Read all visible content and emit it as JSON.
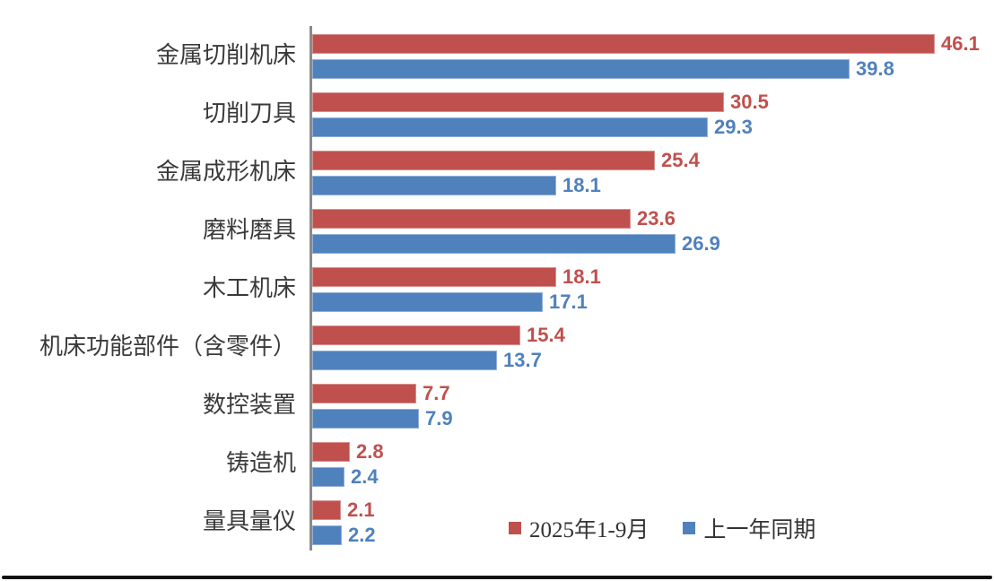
{
  "chart_data": {
    "type": "bar",
    "orientation": "horizontal",
    "title": "",
    "xlabel": "",
    "ylabel": "",
    "categories": [
      "金属切削机床",
      "切削刀具",
      "金属成形机床",
      "磨料磨具",
      "木工机床",
      "机床功能部件（含零件）",
      "数控装置",
      "铸造机",
      "量具量仪"
    ],
    "series": [
      {
        "name": "2025年1-9月",
        "color": "#c0504d",
        "values": [
          46.1,
          30.5,
          25.4,
          23.6,
          18.1,
          15.4,
          7.7,
          2.8,
          2.1
        ]
      },
      {
        "name": "上一年同期",
        "color": "#4f81bd",
        "values": [
          39.8,
          29.3,
          18.1,
          26.9,
          17.1,
          13.7,
          7.9,
          2.4,
          2.2
        ]
      }
    ],
    "xlim": [
      0,
      46.1
    ],
    "value_labels": true,
    "value_label_decimals": 1,
    "grid": false,
    "legend_position": "inside-bottom-right"
  },
  "colors": {
    "series_2025": "#c0504d",
    "series_prev": "#4f81bd",
    "axis_line": "#8a8a8a",
    "category_text": "#3a3a3a",
    "legend_text": "#333333",
    "bottom_line": "#121212",
    "background": "#ffffff"
  }
}
